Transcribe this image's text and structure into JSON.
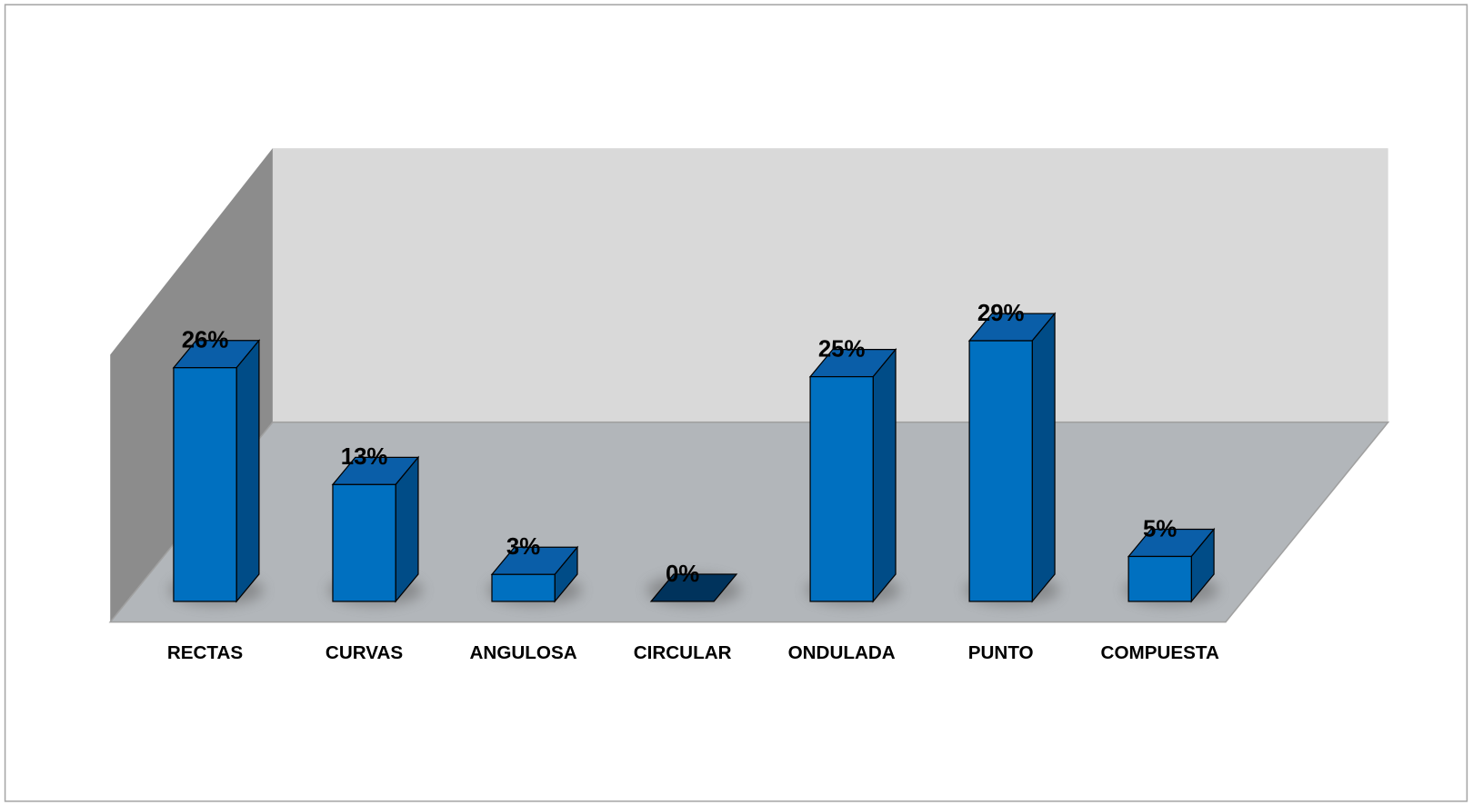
{
  "chart_data": {
    "type": "bar3d",
    "categories": [
      "RECTAS",
      "CURVAS",
      "ANGULOSA",
      "CIRCULAR",
      "ONDULADA",
      "PUNTO",
      "COMPUESTA"
    ],
    "values": [
      26,
      13,
      3,
      0,
      25,
      29,
      5
    ],
    "value_labels": [
      "26%",
      "13%",
      "3%",
      "0%",
      "25%",
      "29%",
      "5%"
    ],
    "color": "#0070c0"
  }
}
